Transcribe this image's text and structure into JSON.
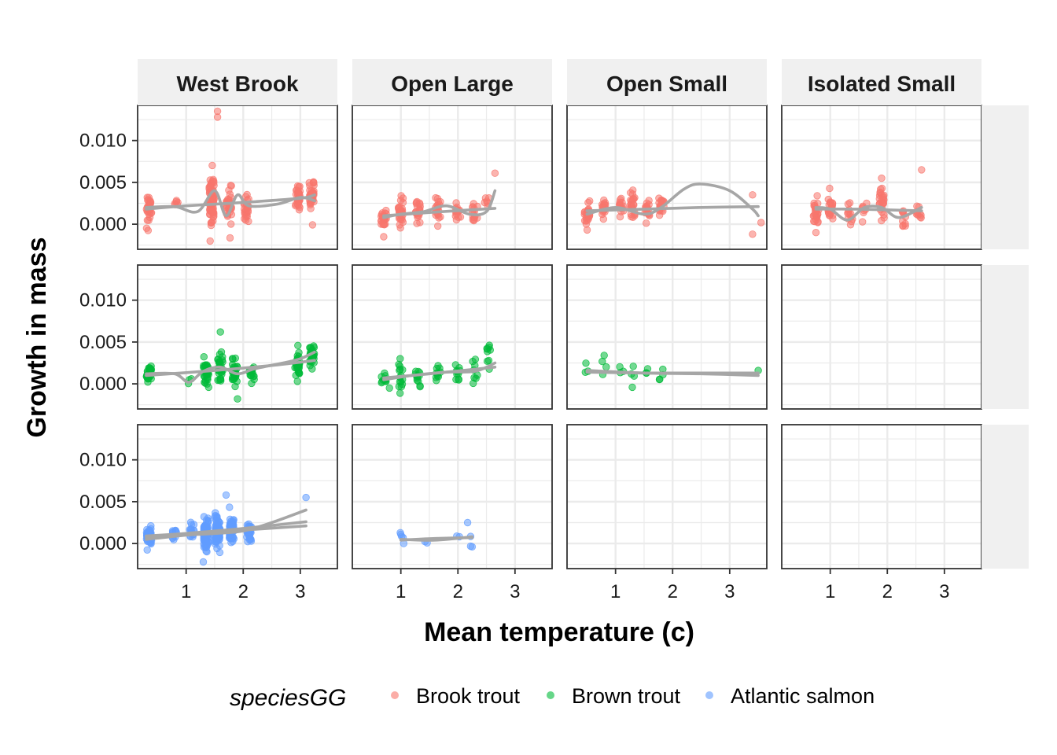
{
  "chart_data": {
    "type": "scatter",
    "xlabel": "Mean temperature (c)",
    "ylabel": "Growth in mass",
    "xlim": [
      0.15,
      3.65
    ],
    "ylim": [
      -0.003,
      0.0142
    ],
    "x_ticks": [
      1,
      2,
      3
    ],
    "x_tick_labels": [
      "1",
      "2",
      "3"
    ],
    "y_ticks": [
      0.0,
      0.005,
      0.01
    ],
    "y_tick_labels": [
      "0.000",
      "0.005",
      "0.010"
    ],
    "grid": true,
    "columns": [
      "West Brook",
      "Open Large",
      "Open Small",
      "Isolated Small"
    ],
    "rows": [
      "Brook trout",
      "Brown trout",
      "Atlantic salmon"
    ],
    "legend": {
      "title": "speciesGG",
      "position": "bottom",
      "entries": [
        "Brook trout",
        "Brown trout",
        "Atlantic salmon"
      ]
    },
    "colors": {
      "Brook trout": "#F8766D",
      "Brown trout": "#00BA38",
      "Atlantic salmon": "#619CFF",
      "smooth": "#A6A6A6"
    },
    "panels": [
      {
        "row": "Brook trout",
        "column": "West Brook",
        "clusters": [
          [
            0.35,
            0.002,
            30,
            0.0012
          ],
          [
            0.82,
            0.0025,
            6,
            0.0006
          ],
          [
            1.45,
            0.003,
            80,
            0.0018
          ],
          [
            1.75,
            0.0023,
            35,
            0.0013
          ],
          [
            2.05,
            0.0018,
            25,
            0.001
          ],
          [
            2.95,
            0.0033,
            35,
            0.0011
          ],
          [
            3.2,
            0.0037,
            40,
            0.0012
          ]
        ],
        "extra_points": [
          [
            1.55,
            0.0135
          ],
          [
            1.55,
            0.0128
          ],
          [
            1.42,
            -0.002
          ]
        ],
        "smooth_lines": [
          [
            [
              0.3,
              0.002
            ],
            [
              0.8,
              0.0021
            ],
            [
              1.2,
              0.0015
            ],
            [
              1.5,
              0.004
            ],
            [
              1.7,
              0.001
            ],
            [
              1.9,
              0.0035
            ],
            [
              2.1,
              0.0022
            ],
            [
              2.6,
              0.0024
            ],
            [
              3.0,
              0.0032
            ],
            [
              3.25,
              0.0028
            ]
          ],
          [
            [
              0.3,
              0.0018
            ],
            [
              1.0,
              0.0022
            ],
            [
              2.0,
              0.0026
            ],
            [
              3.0,
              0.0031
            ],
            [
              3.25,
              0.0035
            ]
          ]
        ]
      },
      {
        "row": "Brook trout",
        "column": "Open Large",
        "clusters": [
          [
            0.7,
            0.0009,
            25,
            0.0008
          ],
          [
            1.0,
            0.0013,
            30,
            0.001
          ],
          [
            1.3,
            0.0014,
            20,
            0.0009
          ],
          [
            1.65,
            0.0018,
            20,
            0.001
          ],
          [
            2.0,
            0.0016,
            15,
            0.0008
          ],
          [
            2.3,
            0.0015,
            15,
            0.0008
          ],
          [
            2.5,
            0.0024,
            6,
            0.001
          ]
        ],
        "extra_points": [
          [
            2.65,
            0.0061
          ],
          [
            0.7,
            -0.0015
          ]
        ],
        "smooth_lines": [
          [
            [
              0.7,
              0.0008
            ],
            [
              1.0,
              0.0012
            ],
            [
              1.4,
              0.0015
            ],
            [
              1.8,
              0.0022
            ],
            [
              2.2,
              0.0012
            ],
            [
              2.5,
              0.0015
            ],
            [
              2.65,
              0.004
            ]
          ],
          [
            [
              0.7,
              0.001
            ],
            [
              1.5,
              0.0014
            ],
            [
              2.65,
              0.0019
            ]
          ]
        ]
      },
      {
        "row": "Brook trout",
        "column": "Open Small",
        "clusters": [
          [
            0.5,
            0.0012,
            25,
            0.001
          ],
          [
            0.8,
            0.002,
            20,
            0.0008
          ],
          [
            1.1,
            0.002,
            15,
            0.0008
          ],
          [
            1.3,
            0.0023,
            25,
            0.001
          ],
          [
            1.55,
            0.0017,
            20,
            0.001
          ],
          [
            1.8,
            0.002,
            20,
            0.0009
          ]
        ],
        "extra_points": [
          [
            3.4,
            0.0035
          ],
          [
            3.4,
            -0.0012
          ],
          [
            3.55,
            0.0002
          ]
        ],
        "smooth_lines": [
          [
            [
              0.5,
              0.0012
            ],
            [
              1.0,
              0.002
            ],
            [
              1.5,
              0.0012
            ],
            [
              1.8,
              0.002
            ],
            [
              2.2,
              0.0042
            ],
            [
              2.5,
              0.0048
            ],
            [
              3.0,
              0.004
            ],
            [
              3.4,
              0.0018
            ],
            [
              3.5,
              0.001
            ]
          ],
          [
            [
              0.5,
              0.0016
            ],
            [
              1.5,
              0.0018
            ],
            [
              2.5,
              0.002
            ],
            [
              3.5,
              0.0021
            ]
          ]
        ]
      },
      {
        "row": "Brook trout",
        "column": "Isolated Small",
        "clusters": [
          [
            0.75,
            0.0015,
            25,
            0.001
          ],
          [
            1.0,
            0.002,
            25,
            0.0011
          ],
          [
            1.35,
            0.0015,
            12,
            0.001
          ],
          [
            1.6,
            0.0018,
            8,
            0.001
          ],
          [
            1.9,
            0.0025,
            25,
            0.0011
          ],
          [
            2.3,
            0.001,
            10,
            0.001
          ],
          [
            2.55,
            0.0015,
            10,
            0.001
          ]
        ],
        "extra_points": [
          [
            2.6,
            0.0065
          ],
          [
            1.9,
            0.0055
          ],
          [
            0.75,
            -0.001
          ]
        ],
        "smooth_lines": [
          [
            [
              0.75,
              0.002
            ],
            [
              1.0,
              0.0018
            ],
            [
              1.3,
              0.0005
            ],
            [
              1.6,
              0.002
            ],
            [
              1.9,
              0.002
            ],
            [
              2.2,
              0.0008
            ],
            [
              2.6,
              0.002
            ]
          ],
          [
            [
              0.75,
              0.0018
            ],
            [
              1.5,
              0.0018
            ],
            [
              2.6,
              0.0016
            ]
          ]
        ]
      },
      {
        "row": "Brown trout",
        "column": "West Brook",
        "clusters": [
          [
            0.35,
            0.0012,
            30,
            0.0008
          ],
          [
            1.05,
            0.0005,
            3,
            0.0005
          ],
          [
            1.35,
            0.0015,
            35,
            0.0012
          ],
          [
            1.6,
            0.002,
            30,
            0.0012
          ],
          [
            1.85,
            0.0015,
            30,
            0.001
          ],
          [
            2.15,
            0.0012,
            15,
            0.0008
          ],
          [
            2.95,
            0.0022,
            30,
            0.001
          ],
          [
            3.2,
            0.0035,
            30,
            0.001
          ]
        ],
        "extra_points": [
          [
            1.6,
            0.0062
          ],
          [
            1.9,
            -0.0018
          ],
          [
            2.95,
            0.0003
          ]
        ],
        "smooth_lines": [
          [
            [
              0.3,
              0.0012
            ],
            [
              0.8,
              0.0012
            ],
            [
              1.05,
              0.0002
            ],
            [
              1.3,
              0.0015
            ],
            [
              1.6,
              0.002
            ],
            [
              1.9,
              0.0012
            ],
            [
              2.2,
              0.0018
            ],
            [
              2.7,
              0.0025
            ],
            [
              3.0,
              0.003
            ],
            [
              3.25,
              0.0038
            ]
          ],
          [
            [
              0.3,
              0.001
            ],
            [
              1.5,
              0.0016
            ],
            [
              2.5,
              0.0022
            ],
            [
              3.25,
              0.0028
            ]
          ]
        ]
      },
      {
        "row": "Brown trout",
        "column": "Open Large",
        "clusters": [
          [
            0.7,
            0.0005,
            10,
            0.0006
          ],
          [
            1.0,
            0.0012,
            15,
            0.0008
          ],
          [
            1.3,
            0.001,
            12,
            0.0007
          ],
          [
            1.65,
            0.0013,
            10,
            0.0007
          ],
          [
            2.0,
            0.0016,
            10,
            0.0008
          ],
          [
            2.3,
            0.0012,
            8,
            0.0008
          ],
          [
            2.55,
            0.003,
            8,
            0.0009
          ]
        ],
        "extra_points": [
          [
            2.55,
            0.0046
          ],
          [
            0.8,
            -0.0005
          ]
        ],
        "smooth_lines": [
          [
            [
              0.7,
              0.0005
            ],
            [
              1.2,
              0.001
            ],
            [
              1.8,
              0.0014
            ],
            [
              2.3,
              0.0015
            ],
            [
              2.65,
              0.0025
            ]
          ],
          [
            [
              0.7,
              0.0007
            ],
            [
              1.5,
              0.0012
            ],
            [
              2.65,
              0.002
            ]
          ]
        ]
      },
      {
        "row": "Brown trout",
        "column": "Open Small",
        "clusters": [
          [
            0.5,
            0.0013,
            3,
            0.0005
          ],
          [
            0.8,
            0.002,
            3,
            0.001
          ],
          [
            1.1,
            0.0015,
            3,
            0.0007
          ],
          [
            1.3,
            0.001,
            4,
            0.0007
          ],
          [
            1.55,
            0.0012,
            3,
            0.0006
          ],
          [
            1.8,
            0.0008,
            4,
            0.0007
          ]
        ],
        "extra_points": [
          [
            0.8,
            0.0034
          ],
          [
            3.5,
            0.0016
          ]
        ],
        "smooth_lines": [
          [
            [
              0.5,
              0.0016
            ],
            [
              1.5,
              0.0013
            ],
            [
              2.5,
              0.0012
            ],
            [
              3.5,
              0.001
            ]
          ],
          [
            [
              0.5,
              0.0014
            ],
            [
              1.5,
              0.0013
            ],
            [
              2.5,
              0.0013
            ],
            [
              3.5,
              0.0013
            ]
          ]
        ]
      },
      {
        "row": "Brown trout",
        "column": "Isolated Small",
        "clusters": [],
        "extra_points": [],
        "smooth_lines": []
      },
      {
        "row": "Atlantic salmon",
        "column": "West Brook",
        "clusters": [
          [
            0.35,
            0.0008,
            45,
            0.0007
          ],
          [
            0.8,
            0.0012,
            12,
            0.0006
          ],
          [
            1.1,
            0.0014,
            15,
            0.0008
          ],
          [
            1.35,
            0.001,
            70,
            0.0012
          ],
          [
            1.55,
            0.0015,
            80,
            0.0013
          ],
          [
            1.8,
            0.0015,
            60,
            0.0011
          ],
          [
            2.1,
            0.0013,
            30,
            0.0009
          ]
        ],
        "extra_points": [
          [
            3.1,
            0.0055
          ],
          [
            1.7,
            0.0058
          ],
          [
            1.3,
            -0.0022
          ]
        ],
        "smooth_lines": [
          [
            [
              0.3,
              0.0005
            ],
            [
              1.0,
              0.001
            ],
            [
              1.5,
              0.0012
            ],
            [
              2.0,
              0.0015
            ],
            [
              2.5,
              0.0025
            ],
            [
              3.1,
              0.004
            ]
          ],
          [
            [
              0.3,
              0.0008
            ],
            [
              1.0,
              0.0012
            ],
            [
              2.0,
              0.0018
            ],
            [
              3.1,
              0.0026
            ]
          ],
          [
            [
              0.3,
              0.0009
            ],
            [
              1.5,
              0.0014
            ],
            [
              3.1,
              0.0021
            ]
          ]
        ]
      },
      {
        "row": "Atlantic salmon",
        "column": "Open Large",
        "clusters": [
          [
            1.0,
            0.0006,
            3,
            0.0005
          ],
          [
            1.45,
            0.0002,
            2,
            0.0003
          ],
          [
            2.0,
            0.0006,
            2,
            0.0003
          ],
          [
            2.25,
            0.001,
            2,
            0.001
          ]
        ],
        "extra_points": [
          [
            0.99,
            0.0013
          ],
          [
            2.17,
            0.0025
          ],
          [
            2.25,
            -0.0004
          ],
          [
            1.05,
            0.0
          ]
        ],
        "smooth_lines": [
          [
            [
              1.0,
              0.0005
            ],
            [
              1.6,
              0.0004
            ],
            [
              2.25,
              0.0008
            ]
          ],
          [
            [
              1.0,
              0.0004
            ],
            [
              1.6,
              0.0006
            ],
            [
              2.25,
              0.0007
            ]
          ]
        ]
      },
      {
        "row": "Atlantic salmon",
        "column": "Open Small",
        "clusters": [],
        "extra_points": [],
        "smooth_lines": []
      },
      {
        "row": "Atlantic salmon",
        "column": "Isolated Small",
        "clusters": [],
        "extra_points": [],
        "smooth_lines": []
      }
    ]
  }
}
